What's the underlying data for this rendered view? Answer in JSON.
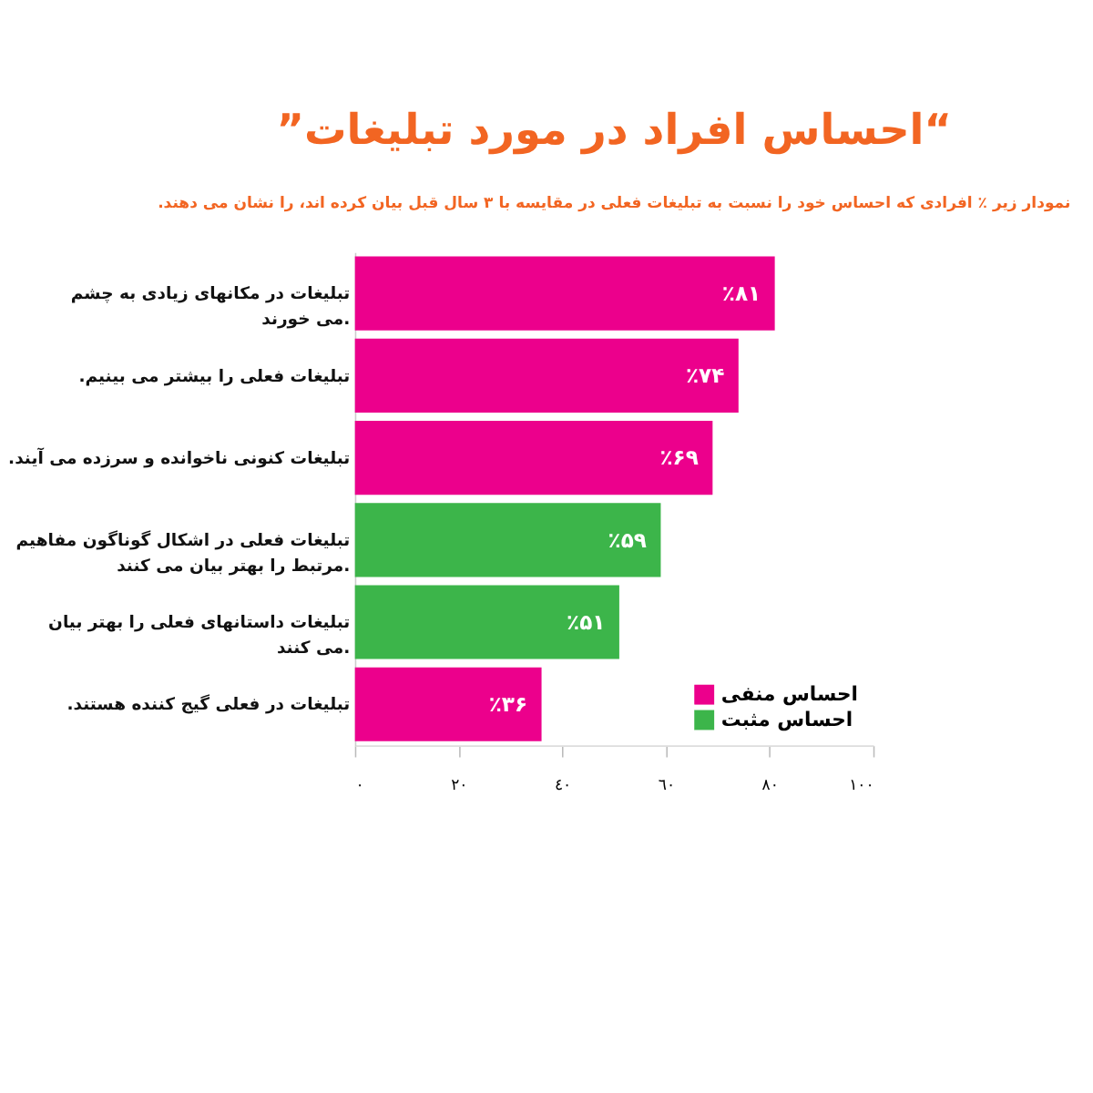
{
  "chart_data": {
    "type": "bar",
    "orientation": "horizontal",
    "title": "“احساس افراد در مورد تبلیغات”",
    "subtitle": "نمودار زیر ٪ افرادی که احساس خود را نسبت به تبلیغات فعلی در مقایسه با ۳ سال قبل بیان کرده اند، را نشان می دهند.",
    "categories": [
      "تبلیغات در مکانهای زیادی به چشم\nمی خورند.",
      "تبلیغات فعلی را بیشتر می بینیم.",
      "تبلیغات کنونی ناخوانده و سرزده می آیند.",
      "تبلیغات فعلی در اشکال گوناگون مفاهیم\nمرتبط را بهتر بیان می کنند.",
      "تبلیغات داستانهای فعلی را بهتر بیان\nمی کنند.",
      "تبلیغات در فعلی گیج کننده هستند."
    ],
    "series": [
      {
        "name": "احساس منفی",
        "color": "#ec008c",
        "values": [
          81,
          74,
          69,
          null,
          null,
          36
        ],
        "value_labels": [
          "٪۸۱",
          "٪۷۴",
          "٪۶۹",
          null,
          null,
          "٪۳۶"
        ]
      },
      {
        "name": "احساس مثبت",
        "color": "#3cb54a",
        "values": [
          null,
          null,
          null,
          59,
          51,
          null
        ],
        "value_labels": [
          null,
          null,
          null,
          "٪۵۹",
          "٪۵۱",
          null
        ]
      }
    ],
    "xlim": [
      0,
      100
    ],
    "xticks": [
      {
        "value": 0,
        "label": "٠"
      },
      {
        "value": 20,
        "label": "٢٠"
      },
      {
        "value": 40,
        "label": "٤٠"
      },
      {
        "value": 60,
        "label": "٦٠"
      },
      {
        "value": 80,
        "label": "٨٠"
      },
      {
        "value": 100,
        "label": "١٠٠"
      }
    ],
    "grid": false,
    "legend": "bottom right"
  }
}
